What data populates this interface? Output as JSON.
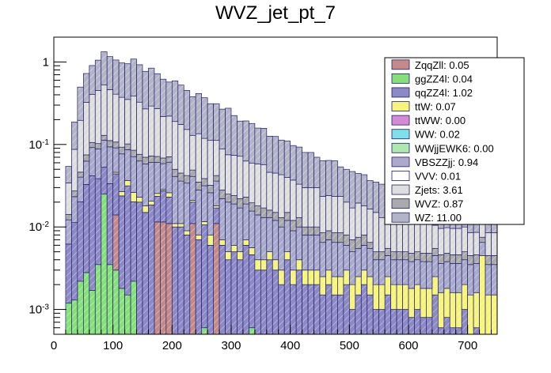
{
  "chart_data": {
    "type": "bar",
    "stacked": true,
    "title": "WVZ_jet_pt_7",
    "xlabel": "",
    "ylabel": "",
    "yscale": "log",
    "xlim": [
      0,
      750
    ],
    "ylim": [
      0.0005,
      2
    ],
    "bin_width": 10,
    "x_ticks": [
      0,
      100,
      200,
      300,
      400,
      500,
      600,
      700
    ],
    "x_tick_labels": [
      "0",
      "100",
      "200",
      "300",
      "400",
      "500",
      "600",
      "700"
    ],
    "y_ticks": [
      0.001,
      0.01,
      0.1,
      1
    ],
    "y_tick_labels": [
      {
        "base": "10",
        "exp": "-3"
      },
      {
        "base": "10",
        "exp": "-2"
      },
      {
        "base": "10",
        "exp": "-1"
      },
      {
        "base": "1",
        "exp": ""
      }
    ],
    "legend_position": "top-right",
    "legend": [
      {
        "label": "ZqqZll: 0.05",
        "color": "#c48a8a"
      },
      {
        "label": "ggZZ4l: 0.04",
        "color": "#86e07a"
      },
      {
        "label": "qqZZ4l: 1.02",
        "color": "#8d89c6"
      },
      {
        "label": "ttW: 0.07",
        "color": "#f6f47a"
      },
      {
        "label": "ttWW: 0.00",
        "color": "#d58ad8"
      },
      {
        "label": "WW: 0.02",
        "color": "#7ee0e8"
      },
      {
        "label": "WWjjEWK6: 0.00",
        "color": "#b0e6b0"
      },
      {
        "label": "VBSZZjj: 0.94",
        "color": "#aaaacc"
      },
      {
        "label": "VVV: 0.01",
        "color": "#ffffff"
      },
      {
        "label": "Zjets: 3.61",
        "color": "#dedede"
      },
      {
        "label": "WVZ: 0.87",
        "color": "#aaaaaa"
      },
      {
        "label": "WZ: 11.00",
        "color": "#b4b4c8"
      }
    ],
    "series": [
      {
        "name": "ggZZ4l",
        "color": "#86e07a",
        "values": [
          0,
          0,
          0.0012,
          0.0013,
          0.0022,
          0.0028,
          0.0017,
          0.0035,
          0.025,
          0.0035,
          0.003,
          0.0018,
          0.0015,
          0.0022,
          0,
          0,
          0.0005,
          0.0005,
          0.0005,
          0,
          0,
          0,
          0,
          0,
          0,
          0.0006,
          0,
          0,
          0,
          0,
          0,
          0,
          0,
          0.0006,
          0,
          0,
          0,
          0,
          0,
          0,
          0,
          0,
          0,
          0,
          0,
          0,
          0,
          0,
          0,
          0,
          0,
          0,
          0,
          0,
          0,
          0,
          0,
          0,
          0,
          0,
          0,
          0,
          0,
          0,
          0,
          0,
          0,
          0,
          0,
          0,
          0,
          0,
          0,
          0,
          0
        ]
      },
      {
        "name": "ZqqZll",
        "color": "#c48a8a",
        "values": [
          0,
          0,
          0,
          0,
          0,
          0,
          0,
          0,
          0,
          0,
          0.011,
          0,
          0,
          0,
          0,
          0,
          0,
          0.011,
          0.011,
          0.011,
          0,
          0,
          0,
          0.011,
          0,
          0,
          0,
          0.011,
          0,
          0,
          0,
          0,
          0,
          0,
          0,
          0,
          0,
          0,
          0,
          0,
          0,
          0,
          0,
          0,
          0,
          0,
          0,
          0,
          0,
          0,
          0,
          0,
          0,
          0,
          0,
          0,
          0,
          0,
          0,
          0,
          0,
          0,
          0,
          0,
          0,
          0,
          0,
          0,
          0,
          0,
          0,
          0,
          0,
          0,
          0
        ]
      },
      {
        "name": "qqZZ4l",
        "color": "#8d89c6",
        "values": [
          0,
          0,
          0.005,
          0.01,
          0.018,
          0.03,
          0.04,
          0.035,
          0.028,
          0.03,
          0.03,
          0.022,
          0.03,
          0.018,
          0.02,
          0.015,
          0.018,
          0.012,
          0.016,
          0.012,
          0.01,
          0.01,
          0.008,
          0.009,
          0.007,
          0.01,
          0.006,
          0.006,
          0.006,
          0.004,
          0.005,
          0.004,
          0.006,
          0.004,
          0.003,
          0.003,
          0.004,
          0.003,
          0.002,
          0.004,
          0.002,
          0.003,
          0.002,
          0.002,
          0.002,
          0.0015,
          0.002,
          0.0015,
          0.0015,
          0.002,
          0.001,
          0.0015,
          0.002,
          0.0015,
          0.001,
          0.001,
          0.0015,
          0.001,
          0.001,
          0.001,
          0.0008,
          0.001,
          0.0008,
          0.0008,
          0.0015,
          0.0006,
          0.0008,
          0.0006,
          0.0006,
          0.001,
          0.0005,
          0.0006,
          0.0005,
          0.0005,
          0.0005
        ]
      },
      {
        "name": "ttW",
        "color": "#f6f47a",
        "values": [
          0,
          0,
          0,
          0,
          0,
          0,
          0,
          0,
          0,
          0,
          0.002,
          0.003,
          0.005,
          0.006,
          0.003,
          0.003,
          0.002,
          0.002,
          0.001,
          0.003,
          0.001,
          0.001,
          0.001,
          0.001,
          0.001,
          0.001,
          0.002,
          0.001,
          0.001,
          0.001,
          0.001,
          0.001,
          0.001,
          0.001,
          0.001,
          0.001,
          0.001,
          0.001,
          0.001,
          0.001,
          0.001,
          0.001,
          0.001,
          0.001,
          0.001,
          0.001,
          0.001,
          0.001,
          0.001,
          0.001,
          0.001,
          0.001,
          0.001,
          0.001,
          0.001,
          0.001,
          0.001,
          0.001,
          0.001,
          0.001,
          0.001,
          0.001,
          0.001,
          0.001,
          0.001,
          0.001,
          0.001,
          0.001,
          0.001,
          0.001,
          0.001,
          0.001,
          0.004,
          0.001,
          0.001
        ]
      },
      {
        "name": "VBSZZjj",
        "color": "#aaaacc",
        "values": [
          0,
          0,
          0.006,
          0.012,
          0.02,
          0.03,
          0.05,
          0.05,
          0.06,
          0.06,
          0.045,
          0.05,
          0.05,
          0.045,
          0.04,
          0.04,
          0.04,
          0.035,
          0.03,
          0.035,
          0.03,
          0.025,
          0.025,
          0.02,
          0.02,
          0.02,
          0.018,
          0.018,
          0.015,
          0.015,
          0.013,
          0.012,
          0.012,
          0.01,
          0.01,
          0.009,
          0.008,
          0.008,
          0.007,
          0.007,
          0.006,
          0.006,
          0.005,
          0.005,
          0.005,
          0.004,
          0.004,
          0.004,
          0.004,
          0.003,
          0.003,
          0.003,
          0.003,
          0.003,
          0.002,
          0.002,
          0.002,
          0.002,
          0.002,
          0.002,
          0.002,
          0.002,
          0.002,
          0.002,
          0.002,
          0.002,
          0.002,
          0.002,
          0.002,
          0.002,
          0.002,
          0.002,
          0.002,
          0.002,
          0.002
        ]
      },
      {
        "name": "WVZ",
        "color": "#aaaaaa",
        "values": [
          0,
          0,
          0.002,
          0.004,
          0.006,
          0.012,
          0.014,
          0.014,
          0.016,
          0.018,
          0.016,
          0.016,
          0.015,
          0.014,
          0.013,
          0.012,
          0.012,
          0.011,
          0.01,
          0.01,
          0.009,
          0.009,
          0.008,
          0.008,
          0.007,
          0.007,
          0.006,
          0.006,
          0.006,
          0.005,
          0.005,
          0.005,
          0.004,
          0.004,
          0.004,
          0.004,
          0.003,
          0.003,
          0.003,
          0.003,
          0.003,
          0.003,
          0.002,
          0.002,
          0.002,
          0.002,
          0.002,
          0.002,
          0.002,
          0.002,
          0.002,
          0.002,
          0.002,
          0.001,
          0.001,
          0.001,
          0.001,
          0.001,
          0.001,
          0.001,
          0.001,
          0.001,
          0.001,
          0.001,
          0.001,
          0.001,
          0.001,
          0.001,
          0.001,
          0.001,
          0.001,
          0.001,
          0.001,
          0.001,
          0.001
        ]
      },
      {
        "name": "Zjets",
        "color": "#dedede",
        "values": [
          0,
          0,
          0.02,
          0.06,
          0.15,
          0.25,
          0.3,
          0.35,
          0.4,
          0.35,
          0.3,
          0.28,
          0.25,
          0.3,
          0.25,
          0.2,
          0.22,
          0.2,
          0.15,
          0.15,
          0.14,
          0.13,
          0.11,
          0.08,
          0.1,
          0.08,
          0.08,
          0.07,
          0.06,
          0.05,
          0.05,
          0.05,
          0.04,
          0.04,
          0.04,
          0.04,
          0.03,
          0.03,
          0.03,
          0.025,
          0.025,
          0.02,
          0.02,
          0.02,
          0.02,
          0.015,
          0.015,
          0.015,
          0.015,
          0.012,
          0.01,
          0.012,
          0.01,
          0.01,
          0.01,
          0.008,
          0.008,
          0.008,
          0.007,
          0.007,
          0.006,
          0.006,
          0.006,
          0.006,
          0.005,
          0.005,
          0.005,
          0.005,
          0.005,
          0.005,
          0.004,
          0.004,
          0.004,
          0.004,
          0.004
        ]
      },
      {
        "name": "WZ",
        "color": "#b4b4c8",
        "values": [
          0,
          0,
          0.02,
          0.1,
          0.3,
          0.4,
          0.5,
          0.6,
          0.8,
          0.7,
          0.65,
          0.6,
          0.6,
          0.7,
          0.6,
          0.5,
          0.55,
          0.45,
          0.4,
          0.35,
          0.4,
          0.35,
          0.3,
          0.25,
          0.28,
          0.25,
          0.2,
          0.2,
          0.18,
          0.2,
          0.15,
          0.12,
          0.13,
          0.12,
          0.1,
          0.1,
          0.08,
          0.08,
          0.07,
          0.07,
          0.06,
          0.06,
          0.05,
          0.05,
          0.04,
          0.04,
          0.04,
          0.04,
          0.03,
          0.03,
          0.03,
          0.025,
          0.025,
          0.02,
          0.02,
          0.02,
          0.018,
          0.015,
          0.015,
          0.012,
          0.012,
          0.01,
          0.01,
          0.01,
          0.012,
          0.008,
          0.008,
          0.008,
          0.007,
          0.007,
          0.006,
          0.006,
          0.006,
          0.005,
          0.005
        ]
      }
    ]
  }
}
